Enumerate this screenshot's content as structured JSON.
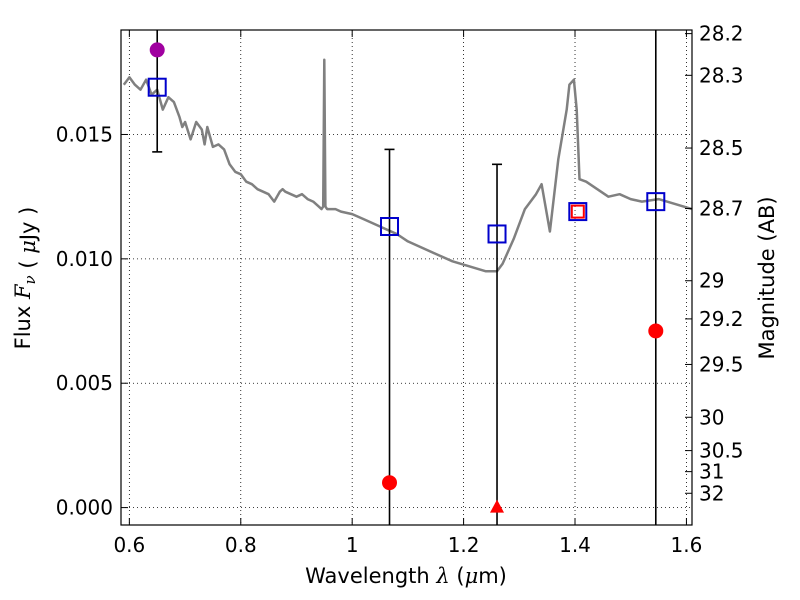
{
  "chart_data": {
    "type": "scatter",
    "xlabel": "Wavelength  λ (μm)",
    "ylabel": "Flux  F_ν  ( μJy )",
    "ylabel2": "Magnitude (AB)",
    "xlim": [
      0.585,
      1.61
    ],
    "ylim": [
      -0.0007,
      0.0192
    ],
    "grid": true,
    "xticks": [
      0.6,
      0.8,
      1.0,
      1.2,
      1.4,
      1.6
    ],
    "xtick_labels": [
      "0.6",
      "0.8",
      "1",
      "1.2",
      "1.4",
      "1.6"
    ],
    "yticks": [
      0.0,
      0.005,
      0.01,
      0.015
    ],
    "ytick_labels": [
      "0.000",
      "0.005",
      "0.010",
      "0.015"
    ],
    "right_ticks": [
      {
        "label": "28.2",
        "mag": 28.2
      },
      {
        "label": "28.3",
        "mag": 28.3
      },
      {
        "label": "28.5",
        "mag": 28.5
      },
      {
        "label": "28.7",
        "mag": 28.7
      },
      {
        "label": "29",
        "mag": 29.0
      },
      {
        "label": "29.2",
        "mag": 29.2
      },
      {
        "label": "29.5",
        "mag": 29.5
      },
      {
        "label": "30",
        "mag": 30.0
      },
      {
        "label": "30.5",
        "mag": 30.5
      },
      {
        "label": "31",
        "mag": 31.0
      },
      {
        "label": "32",
        "mag": 32.0
      }
    ],
    "model_spectrum": {
      "color": "#808080",
      "x": [
        0.59,
        0.6,
        0.61,
        0.62,
        0.63,
        0.64,
        0.65,
        0.66,
        0.67,
        0.68,
        0.69,
        0.695,
        0.7,
        0.71,
        0.72,
        0.73,
        0.735,
        0.74,
        0.75,
        0.76,
        0.77,
        0.78,
        0.79,
        0.8,
        0.81,
        0.82,
        0.83,
        0.84,
        0.85,
        0.86,
        0.87,
        0.875,
        0.88,
        0.89,
        0.9,
        0.91,
        0.92,
        0.93,
        0.94,
        0.945,
        0.948,
        0.95,
        0.952,
        0.955,
        0.96,
        0.97,
        0.98,
        1.0,
        1.02,
        1.05,
        1.08,
        1.1,
        1.12,
        1.15,
        1.18,
        1.21,
        1.24,
        1.26,
        1.27,
        1.29,
        1.31,
        1.33,
        1.34,
        1.355,
        1.37,
        1.385,
        1.39,
        1.398,
        1.403,
        1.408,
        1.42,
        1.44,
        1.46,
        1.48,
        1.5,
        1.52,
        1.55,
        1.58,
        1.61
      ],
      "y": [
        0.017,
        0.0173,
        0.017,
        0.0168,
        0.0172,
        0.0166,
        0.0168,
        0.016,
        0.0165,
        0.0163,
        0.0157,
        0.0153,
        0.0155,
        0.0148,
        0.0155,
        0.0152,
        0.0146,
        0.0153,
        0.0145,
        0.0146,
        0.0144,
        0.0138,
        0.0135,
        0.0134,
        0.0131,
        0.013,
        0.0128,
        0.0127,
        0.0126,
        0.0123,
        0.0127,
        0.0128,
        0.0127,
        0.0126,
        0.0125,
        0.0126,
        0.0124,
        0.0123,
        0.0121,
        0.012,
        0.0121,
        0.018,
        0.0121,
        0.012,
        0.012,
        0.012,
        0.0119,
        0.0118,
        0.0116,
        0.0113,
        0.011,
        0.0107,
        0.0105,
        0.0102,
        0.0099,
        0.0097,
        0.0095,
        0.0095,
        0.0098,
        0.0108,
        0.012,
        0.0126,
        0.013,
        0.0111,
        0.014,
        0.016,
        0.017,
        0.0172,
        0.016,
        0.0132,
        0.0131,
        0.0128,
        0.0125,
        0.0126,
        0.0124,
        0.0123,
        0.0124,
        0.0122,
        0.012
      ]
    },
    "series": [
      {
        "marker": "square-open",
        "color": "#0000cc",
        "points": [
          {
            "x": 0.65,
            "y": 0.0169
          },
          {
            "x": 1.067,
            "y": 0.0113
          },
          {
            "x": 1.26,
            "y": 0.011
          },
          {
            "x": 1.405,
            "y": 0.0119
          },
          {
            "x": 1.545,
            "y": 0.0123
          }
        ]
      },
      {
        "marker": "circle",
        "color": "#ff0000",
        "points": [
          {
            "x": 1.067,
            "y": 0.001
          },
          {
            "x": 1.545,
            "y": 0.0071
          }
        ]
      },
      {
        "marker": "square-open",
        "color": "#ff0000",
        "points": [
          {
            "x": 1.405,
            "y": 0.0119
          }
        ]
      },
      {
        "marker": "triangle",
        "color": "#ff0000",
        "points": [
          {
            "x": 1.26,
            "y": 0.0
          }
        ]
      },
      {
        "marker": "circle",
        "color": "#a000a0",
        "points": [
          {
            "x": 0.65,
            "y": 0.0184
          }
        ]
      }
    ],
    "error_bars": [
      {
        "x": 0.65,
        "y_low": 0.0143,
        "y_high": 0.0192,
        "cap_low": true,
        "cap_high": false
      },
      {
        "x": 1.067,
        "y_low": -0.0007,
        "y_high": 0.0144,
        "cap_low": false,
        "cap_high": true
      },
      {
        "x": 1.26,
        "y_low": -0.0007,
        "y_high": 0.0138,
        "cap_low": false,
        "cap_high": true
      },
      {
        "x": 1.545,
        "y_low": -0.0007,
        "y_high": 0.0192,
        "cap_low": false,
        "cap_high": false
      }
    ]
  }
}
